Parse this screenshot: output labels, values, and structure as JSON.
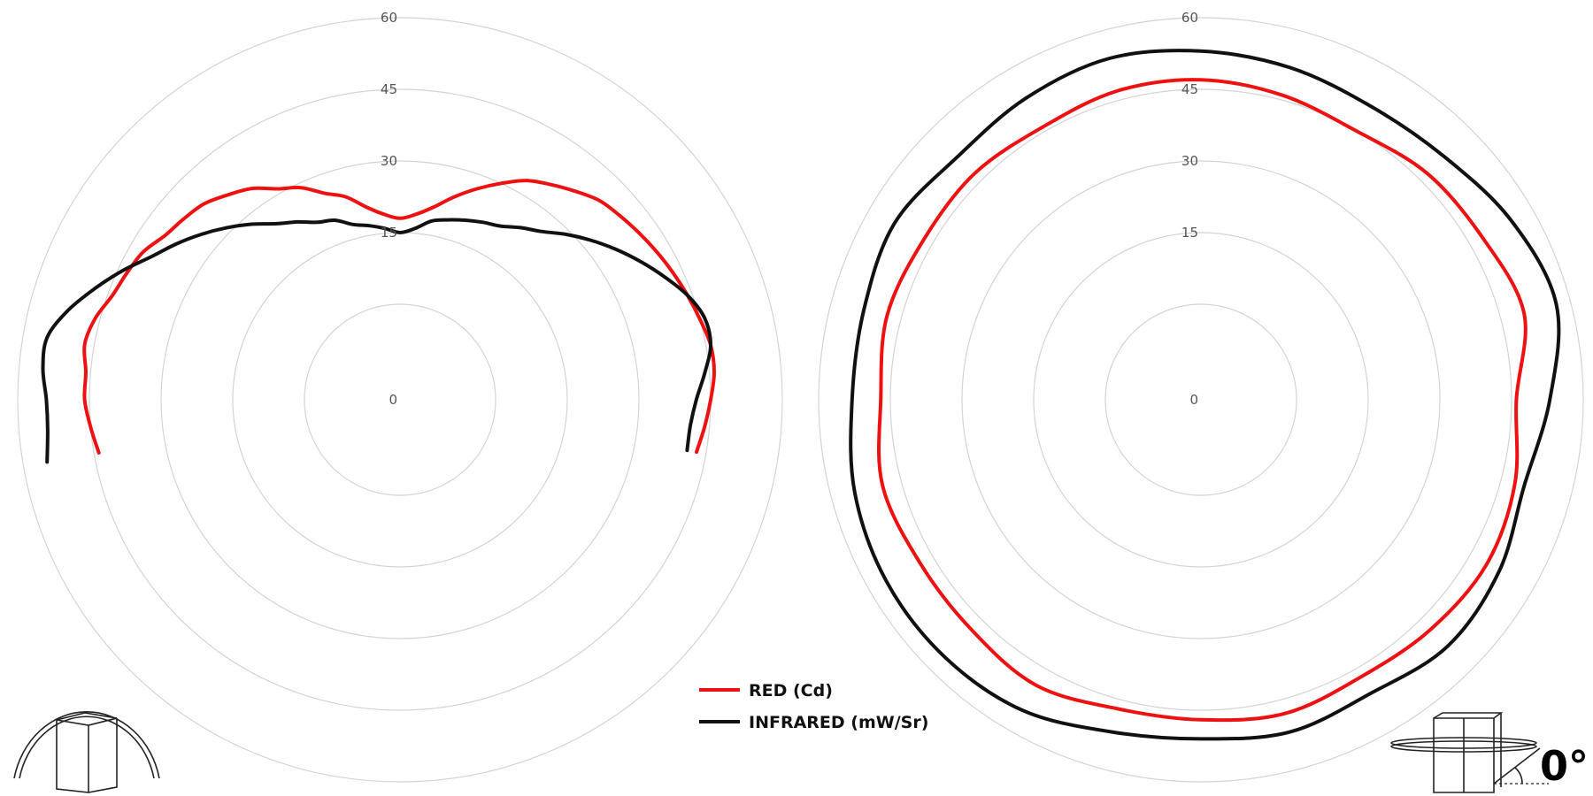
{
  "chart_data": [
    {
      "type": "polar",
      "rlim": [
        0,
        60
      ],
      "r_ticks": [
        "0",
        "15",
        "30",
        "45",
        "60"
      ],
      "grid": true,
      "theta_deg": [
        -100,
        -95,
        -90,
        -85,
        -80,
        -75,
        -70,
        -65,
        -60,
        -55,
        -50,
        -45,
        -40,
        -35,
        -30,
        -25,
        -20,
        -15,
        -10,
        -5,
        0,
        5,
        10,
        15,
        20,
        25,
        30,
        35,
        40,
        45,
        50,
        55,
        60,
        65,
        70,
        75,
        80,
        85,
        90,
        95,
        100
      ],
      "series": [
        {
          "name": "RED (Cd)",
          "color": "#ee1111",
          "values": [
            44,
            45,
            46,
            46,
            47,
            46,
            44,
            43,
            42,
            40,
            39,
            38,
            36,
            34,
            31,
            29,
            26,
            24,
            21,
            19,
            18,
            19,
            21,
            24,
            27,
            30,
            33,
            35,
            37,
            39,
            40,
            41,
            42,
            43,
            44,
            45,
            46,
            46,
            45,
            44,
            43
          ]
        },
        {
          "name": "INFRARED (mW/Sr)",
          "color": "#111111",
          "values": [
            55,
            54,
            54,
            55,
            55,
            52,
            48,
            44,
            40,
            37,
            34,
            31,
            28,
            25,
            23,
            21,
            20,
            18,
            17,
            16,
            15,
            16,
            18,
            19,
            20,
            21,
            22,
            24,
            26,
            29,
            32,
            35,
            38,
            41,
            44,
            46,
            46,
            44,
            42,
            41,
            41
          ]
        }
      ]
    },
    {
      "type": "polar",
      "rlim": [
        0,
        60
      ],
      "r_ticks": [
        "0",
        "15",
        "30",
        "45",
        "60"
      ],
      "grid": true,
      "theta_deg": [
        0,
        15,
        30,
        45,
        60,
        75,
        90,
        105,
        120,
        135,
        150,
        165,
        180,
        195,
        210,
        225,
        240,
        255,
        270,
        285,
        300,
        315,
        330,
        345
      ],
      "series": [
        {
          "name": "RED (Cd)",
          "color": "#ee1111",
          "values": [
            47,
            46,
            45,
            47,
            48,
            50,
            46,
            48,
            49,
            48,
            47,
            48,
            47,
            47,
            49,
            48,
            48,
            49,
            47,
            48,
            47,
            47,
            46,
            47
          ]
        },
        {
          "name": "INFRARED (mW/Sr)",
          "color": "#111111",
          "values": [
            53,
            52,
            51,
            52,
            55,
            57,
            53,
            50,
            52,
            53,
            51,
            52,
            51,
            52,
            55,
            56,
            56,
            55,
            53,
            53,
            54,
            52,
            53,
            54
          ]
        }
      ]
    }
  ],
  "legend": {
    "red_label": "RED (Cd)",
    "infrared_label": "INFRARED (mW/Sr)"
  },
  "rotation_indicator": {
    "angle_label": "0°"
  },
  "icons": {
    "left": "dome-fixture-icon",
    "right": "rotating-fixture-icon"
  }
}
